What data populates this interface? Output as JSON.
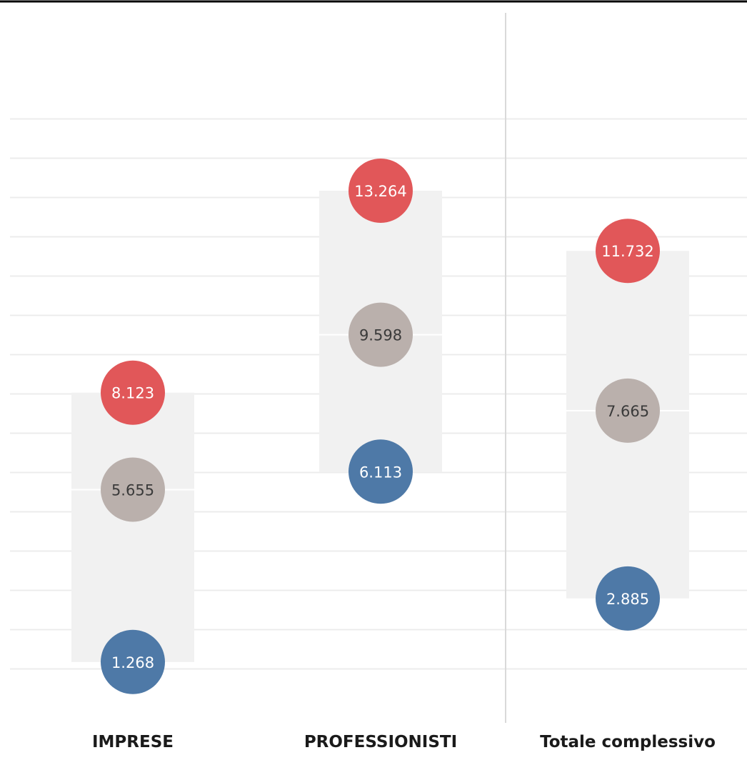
{
  "chart_data": {
    "type": "dot-range",
    "categories": [
      "IMPRESE",
      "PROFESSIONISTI",
      "Totale complessivo"
    ],
    "series": [
      {
        "values": [
          8.123,
          13.264,
          11.732
        ],
        "labels": [
          "8.123",
          "13.264",
          "11.732"
        ],
        "color": "#e15759"
      },
      {
        "values": [
          5.655,
          9.598,
          7.665
        ],
        "labels": [
          "5.655",
          "9.598",
          "7.665"
        ],
        "color": "#bab0ac"
      },
      {
        "values": [
          1.268,
          6.113,
          2.885
        ],
        "labels": [
          "1.268",
          "6.113",
          "2.885"
        ],
        "color": "#4e79a7"
      }
    ],
    "ylim": [
      0,
      15
    ],
    "grid": true,
    "colors": {
      "band": "#f1f1f1",
      "grid": "#ececec",
      "divider": "#d9d9d9"
    }
  }
}
